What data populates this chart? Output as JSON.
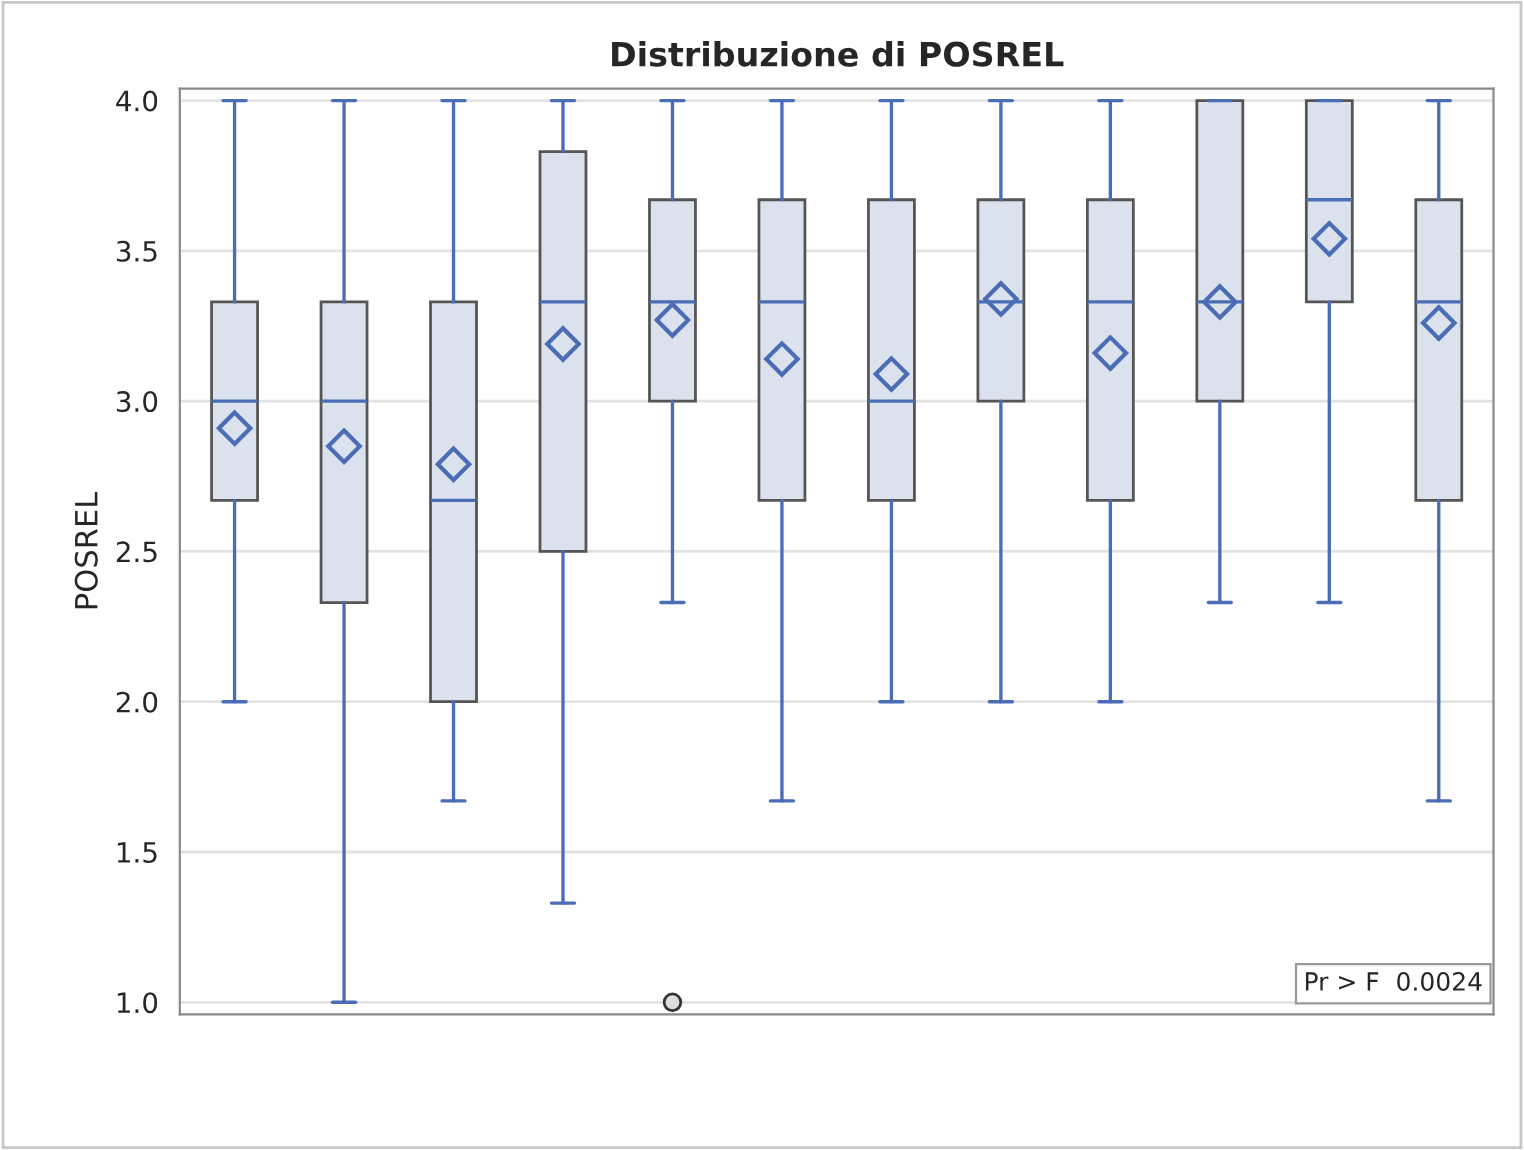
{
  "chart_data": {
    "type": "box",
    "title": "Distribuzione di POSREL",
    "ylabel": "POSREL",
    "categories": [
      null,
      null,
      null,
      null,
      null,
      null,
      null,
      null,
      null,
      null,
      null,
      null
    ],
    "series": [
      {
        "color": "#dbe2ed",
        "boxes": [
          {
            "low": 2.0,
            "q1": 2.67,
            "median": 3.0,
            "q3": 3.33,
            "high": 4.0,
            "mean": 2.91
          },
          {
            "low": 1.0,
            "q1": 2.33,
            "median": 3.0,
            "q3": 3.33,
            "high": 4.0,
            "mean": 2.85
          },
          {
            "low": 1.67,
            "q1": 2.0,
            "median": 2.67,
            "q3": 3.33,
            "high": 4.0,
            "mean": 2.79
          },
          {
            "low": 1.33,
            "q1": 2.5,
            "median": 3.33,
            "q3": 3.83,
            "high": 4.0,
            "mean": 3.19
          },
          {
            "low": 2.33,
            "q1": 3.0,
            "median": 3.33,
            "q3": 3.67,
            "high": 4.0,
            "mean": 3.27,
            "outliers": [
              1.0
            ]
          },
          {
            "low": 1.67,
            "q1": 2.67,
            "median": 3.33,
            "q3": 3.67,
            "high": 4.0,
            "mean": 3.14
          },
          {
            "low": 2.0,
            "q1": 2.67,
            "median": 3.0,
            "q3": 3.67,
            "high": 4.0,
            "mean": 3.09
          },
          {
            "low": 2.0,
            "q1": 3.0,
            "median": 3.33,
            "q3": 3.67,
            "high": 4.0,
            "mean": 3.34
          },
          {
            "low": 2.0,
            "q1": 2.67,
            "median": 3.33,
            "q3": 3.67,
            "high": 4.0,
            "mean": 3.16
          },
          {
            "low": 2.33,
            "q1": 3.0,
            "median": 3.33,
            "q3": 4.0,
            "high": 4.0,
            "mean": 3.33
          },
          {
            "low": 2.33,
            "q1": 3.33,
            "median": 3.67,
            "q3": 4.0,
            "high": 4.0,
            "mean": 3.54
          },
          {
            "low": 1.67,
            "q1": 2.67,
            "median": 3.33,
            "q3": 3.67,
            "high": 4.0,
            "mean": 3.26
          }
        ]
      }
    ],
    "ylim": [
      0.96,
      4.04
    ],
    "yticks": [
      {
        "value": 1.0,
        "label": "1.0"
      },
      {
        "value": 1.5,
        "label": "1.5"
      },
      {
        "value": 2.0,
        "label": "2.0"
      },
      {
        "value": 2.5,
        "label": "2.5"
      },
      {
        "value": 3.0,
        "label": "3.0"
      },
      {
        "value": 3.5,
        "label": "3.5"
      },
      {
        "value": 4.0,
        "label": "4.0"
      }
    ],
    "grid": "y",
    "tick_labels": "y",
    "marker": "diamond",
    "annotations": [
      {
        "text": "Pr > F  0.0024"
      }
    ]
  }
}
